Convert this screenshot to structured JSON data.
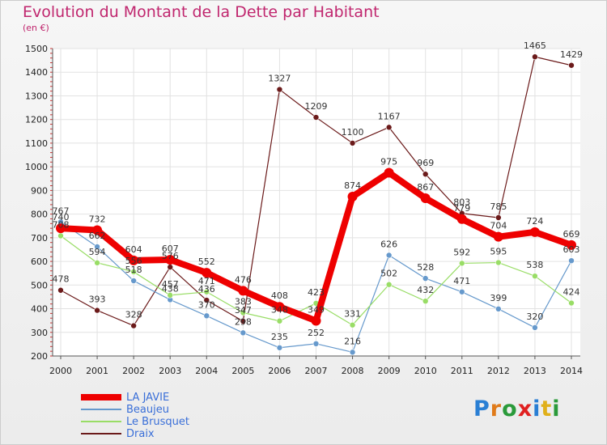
{
  "title": "Evolution du Montant de la Dette par Habitant",
  "subtitle": "(en €)",
  "brand": {
    "letters": [
      {
        "ch": "P",
        "color": "#2a7fd4"
      },
      {
        "ch": "r",
        "color": "#e07b1a"
      },
      {
        "ch": "o",
        "color": "#2a9a3a"
      },
      {
        "ch": "x",
        "color": "#e02020"
      },
      {
        "ch": "i",
        "color": "#2a7fd4"
      },
      {
        "ch": "t",
        "color": "#e0b01a"
      },
      {
        "ch": "i",
        "color": "#2a9a3a"
      }
    ]
  },
  "chart_data": {
    "type": "line",
    "title": "Evolution du Montant de la Dette par Habitant",
    "subtitle": "(en €)",
    "xlabel": "",
    "ylabel": "",
    "x": [
      2000,
      2001,
      2002,
      2003,
      2004,
      2005,
      2006,
      2007,
      2008,
      2009,
      2010,
      2011,
      2012,
      2013,
      2014
    ],
    "ylim": [
      200,
      1500
    ],
    "yticks": [
      200,
      300,
      400,
      500,
      600,
      700,
      800,
      900,
      1000,
      1100,
      1200,
      1300,
      1400,
      1500
    ],
    "grid": true,
    "legend_position": "bottom-left",
    "series": [
      {
        "name": "LA JAVIE",
        "color": "#ee0000",
        "width": 8,
        "marker": 6,
        "values": [
          740,
          732,
          604,
          607,
          552,
          476,
          408,
          349,
          874,
          975,
          867,
          779,
          704,
          724,
          669
        ]
      },
      {
        "name": "Beaujeu",
        "color": "#6699cc",
        "width": 1.2,
        "marker": 3.5,
        "values": [
          767,
          662,
          518,
          438,
          370,
          298,
          235,
          252,
          216,
          626,
          528,
          471,
          399,
          320,
          603
        ]
      },
      {
        "name": "Le Brusquet",
        "color": "#99dd66",
        "width": 1.2,
        "marker": 3.5,
        "values": [
          708,
          594,
          556,
          457,
          471,
          383,
          348,
          423,
          331,
          502,
          432,
          592,
          595,
          538,
          424
        ]
      },
      {
        "name": "Draix",
        "color": "#6b1a1a",
        "width": 1.2,
        "marker": 3.5,
        "values": [
          478,
          393,
          328,
          576,
          436,
          347,
          1327,
          1209,
          1100,
          1167,
          969,
          803,
          785,
          1465,
          1429
        ]
      }
    ]
  }
}
